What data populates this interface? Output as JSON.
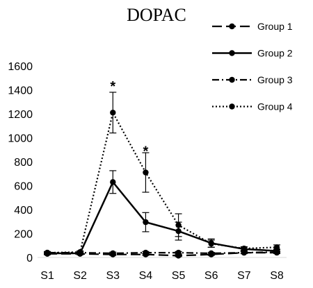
{
  "chart_data": {
    "type": "line",
    "title": "DOPAC",
    "xlabel": "",
    "ylabel": "",
    "categories": [
      "S1",
      "S2",
      "S3",
      "S4",
      "S5",
      "S6",
      "S7",
      "S8"
    ],
    "ylim": [
      0,
      1600
    ],
    "yticks": [
      0,
      200,
      400,
      600,
      800,
      1000,
      1200,
      1400,
      1600
    ],
    "grid": false,
    "legend_position": "top-right",
    "series": [
      {
        "name": "Group 1",
        "line_style": "long-dash",
        "values": [
          30,
          30,
          25,
          25,
          15,
          25,
          40,
          40
        ],
        "errors": [
          8,
          8,
          8,
          8,
          8,
          8,
          8,
          8
        ]
      },
      {
        "name": "Group 2",
        "line_style": "solid",
        "values": [
          35,
          35,
          630,
          295,
          220,
          120,
          70,
          55
        ],
        "errors": [
          10,
          10,
          95,
          80,
          75,
          35,
          15,
          15
        ]
      },
      {
        "name": "Group 3",
        "line_style": "dash-dot",
        "values": [
          40,
          40,
          35,
          40,
          40,
          35,
          40,
          45
        ],
        "errors": [
          8,
          8,
          10,
          10,
          10,
          8,
          8,
          8
        ]
      },
      {
        "name": "Group 4",
        "line_style": "dotted",
        "values": [
          40,
          45,
          1210,
          710,
          270,
          115,
          75,
          85
        ],
        "errors": [
          10,
          10,
          170,
          165,
          95,
          30,
          15,
          20
        ]
      }
    ],
    "annotations": [
      {
        "text": "*",
        "category": "S3",
        "y": 1460
      },
      {
        "text": "*",
        "category": "S4",
        "y": 920
      }
    ],
    "colors": {
      "line": "#000000"
    }
  }
}
